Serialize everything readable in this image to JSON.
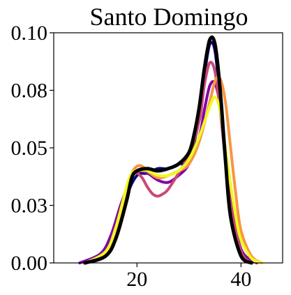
{
  "chart_data": {
    "type": "line",
    "title": "Santo Domingo",
    "xlabel": "",
    "ylabel": "",
    "xlim": [
      4,
      48
    ],
    "ylim": [
      0,
      0.1
    ],
    "xticks": [
      20,
      40
    ],
    "xtick_labels": [
      "20",
      "40"
    ],
    "yticks": [
      0.0,
      0.025,
      0.05,
      0.075,
      0.1
    ],
    "ytick_labels": [
      "0.00",
      "0.03",
      "0.05",
      "0.08",
      "0.10"
    ],
    "grid": false,
    "legend": "none",
    "series": [
      {
        "color": "#0d0887",
        "x": [
          10,
          14,
          16,
          18,
          20,
          22,
          24,
          26,
          28,
          30,
          32,
          33,
          34,
          35,
          36,
          37,
          38,
          40,
          42
        ],
        "y": [
          0.0,
          0.004,
          0.013,
          0.029,
          0.038,
          0.039,
          0.041,
          0.041,
          0.043,
          0.045,
          0.063,
          0.082,
          0.095,
          0.092,
          0.07,
          0.045,
          0.022,
          0.004,
          0.0
        ]
      },
      {
        "color": "#7e03a8",
        "x": [
          9,
          13,
          15,
          17,
          19,
          20,
          22,
          24,
          26,
          28,
          30,
          32,
          33,
          34,
          35,
          36,
          37,
          38,
          40,
          43
        ],
        "y": [
          0.0,
          0.004,
          0.012,
          0.026,
          0.037,
          0.04,
          0.039,
          0.036,
          0.035,
          0.038,
          0.043,
          0.055,
          0.067,
          0.077,
          0.078,
          0.068,
          0.048,
          0.028,
          0.006,
          0.0
        ]
      },
      {
        "color": "#cc4778",
        "x": [
          10,
          14,
          16,
          18,
          19,
          20,
          21,
          22,
          23,
          24,
          25,
          26,
          28,
          30,
          32,
          33,
          34,
          35,
          36,
          37,
          38,
          40,
          42
        ],
        "y": [
          0.0,
          0.004,
          0.014,
          0.032,
          0.038,
          0.039,
          0.037,
          0.033,
          0.03,
          0.029,
          0.03,
          0.032,
          0.039,
          0.047,
          0.062,
          0.078,
          0.087,
          0.083,
          0.066,
          0.045,
          0.025,
          0.005,
          0.0
        ]
      },
      {
        "color": "#f89540",
        "x": [
          10,
          14,
          16,
          18,
          19,
          20,
          21,
          22,
          24,
          26,
          28,
          30,
          32,
          34,
          35,
          36,
          37,
          38,
          39,
          40,
          42,
          44
        ],
        "y": [
          0.0,
          0.004,
          0.014,
          0.032,
          0.039,
          0.042,
          0.042,
          0.04,
          0.037,
          0.038,
          0.04,
          0.043,
          0.053,
          0.07,
          0.079,
          0.08,
          0.07,
          0.05,
          0.03,
          0.014,
          0.003,
          0.0
        ]
      },
      {
        "color": "#f0f921",
        "x": [
          10,
          14,
          16,
          18,
          19,
          20,
          22,
          24,
          26,
          28,
          30,
          32,
          34,
          35,
          36,
          37,
          38,
          39,
          40,
          42,
          44
        ],
        "y": [
          0.0,
          0.005,
          0.016,
          0.033,
          0.039,
          0.04,
          0.04,
          0.038,
          0.038,
          0.04,
          0.045,
          0.055,
          0.068,
          0.072,
          0.066,
          0.05,
          0.034,
          0.02,
          0.01,
          0.002,
          0.0
        ]
      },
      {
        "color": "#000000",
        "x": [
          10,
          14,
          16,
          18,
          19,
          20,
          22,
          24,
          26,
          28,
          30,
          31,
          32,
          33,
          34,
          35,
          36,
          37,
          38,
          40,
          42
        ],
        "y": [
          0.0,
          0.003,
          0.011,
          0.027,
          0.037,
          0.04,
          0.041,
          0.04,
          0.041,
          0.043,
          0.048,
          0.056,
          0.068,
          0.085,
          0.097,
          0.095,
          0.075,
          0.045,
          0.02,
          0.003,
          0.0
        ]
      }
    ]
  }
}
